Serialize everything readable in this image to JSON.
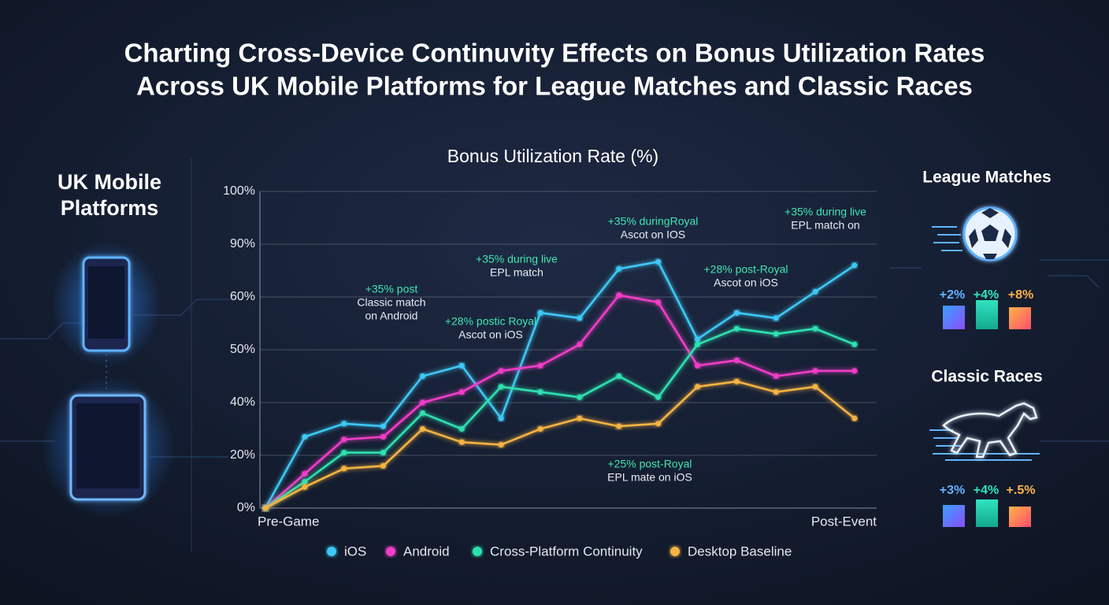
{
  "header": {
    "title_lines": [
      "Charting Cross-Device Continuvity Effects on Bonus Utilization Rates",
      "Across UK Mobile Platforms for League Matches and Classic Races"
    ]
  },
  "platforms_panel": {
    "title_lines": [
      "UK Mobile",
      "Platforms"
    ]
  },
  "chart_data": {
    "type": "line",
    "title": "Bonus Utilization Rate (%)",
    "categories": [
      "Pre-Game",
      null,
      null,
      null,
      null,
      null,
      null,
      null,
      null,
      null,
      null,
      null,
      null,
      null,
      null,
      "Post-Event"
    ],
    "series": [
      {
        "name": "iOS",
        "color": "#3cc8f5",
        "values": [
          0,
          27,
          32,
          31,
          45,
          47,
          34,
          57,
          56,
          76,
          80,
          52,
          57,
          56,
          63,
          78
        ]
      },
      {
        "name": "Android",
        "color": "#f03cc8",
        "values": [
          0,
          13,
          26,
          27,
          40,
          42,
          46,
          47,
          51,
          61,
          59,
          47,
          48,
          45,
          46,
          46
        ]
      },
      {
        "name": "Cross-Platform Continuity",
        "color": "#2de0b0",
        "values": [
          0,
          10,
          21,
          21,
          36,
          30,
          43,
          42,
          41,
          45,
          41,
          51,
          54,
          53,
          54,
          51
        ]
      },
      {
        "name": "Desktop Baseline",
        "color": "#f5b342",
        "values": [
          0,
          8,
          15,
          16,
          30,
          25,
          24,
          30,
          34,
          31,
          32,
          43,
          44,
          42,
          43,
          34
        ]
      }
    ],
    "ylim": [
      0,
      100
    ],
    "yticks": [
      {
        "value": 0,
        "label": "0%"
      },
      {
        "value": 20,
        "label": "20%"
      },
      {
        "value": 40,
        "label": "40%"
      },
      {
        "value": 50,
        "label": "50%"
      },
      {
        "value": 60,
        "label": "60%"
      },
      {
        "value": 90,
        "label": "90%"
      },
      {
        "value": 100,
        "label": "100%"
      }
    ],
    "grid": true,
    "legend": "bottom",
    "annotations": [
      {
        "lines": [
          "+35% post",
          "Classic match",
          "on Android"
        ]
      },
      {
        "lines": [
          "+28% postic Royal",
          "Ascot on iOS"
        ]
      },
      {
        "lines": [
          "+35% during live",
          "EPL match"
        ]
      },
      {
        "lines": [
          "+35% duringRoyal",
          "Ascot on IOS"
        ]
      },
      {
        "lines": [
          "+28% post-Royal",
          "Ascot on iOS"
        ]
      },
      {
        "lines": [
          "+35% during live",
          "EPL match on"
        ]
      },
      {
        "lines": [
          "+25% post-Royal",
          "EPL mate on iOS"
        ]
      }
    ]
  },
  "side_panels": [
    {
      "title": "League Matches",
      "badges": [
        "+2%",
        "+4%",
        "+8%"
      ]
    },
    {
      "title": "Classic Races",
      "badges": [
        "+3%",
        "+4%",
        "+.5%"
      ]
    }
  ]
}
